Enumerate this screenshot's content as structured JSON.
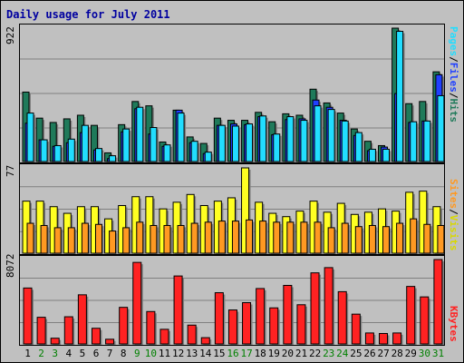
{
  "chart_data": {
    "type": "bar",
    "title": "Daily usage for July 2011",
    "days": [
      "1",
      "2",
      "3",
      "4",
      "5",
      "6",
      "7",
      "8",
      "9",
      "10",
      "11",
      "12",
      "13",
      "14",
      "15",
      "16",
      "17",
      "18",
      "19",
      "20",
      "21",
      "22",
      "23",
      "24",
      "25",
      "26",
      "27",
      "28",
      "29",
      "30",
      "31"
    ],
    "weekend_days": [
      "2",
      "3",
      "9",
      "10",
      "16",
      "17",
      "23",
      "24",
      "30",
      "31"
    ],
    "colors": {
      "pages": "#1f7a5a",
      "files": "#2040ff",
      "hits": "#22ddff",
      "visits": "#ffff22",
      "sites": "#ff9922",
      "kbytes": "#ff2222",
      "weekday_label": "#000000",
      "weekend_label": "#008000"
    },
    "panels": [
      {
        "id": "hits",
        "ymax_label": "922",
        "ylim": [
          0,
          922
        ],
        "legend": [
          "Pages",
          "Files",
          "Hits"
        ],
        "series": [
          {
            "name": "Pages",
            "color": "#1f7a5a",
            "values": [
              480,
              300,
              270,
              295,
              320,
              250,
              60,
              255,
              415,
              385,
              135,
              355,
              170,
              125,
              300,
              285,
              285,
              340,
              275,
              330,
              320,
              500,
              405,
              335,
              225,
              140,
              110,
              922,
              400,
              415,
              620
            ]
          },
          {
            "name": "Files",
            "color": "#2040ff",
            "values": [
              265,
              150,
              105,
              130,
              200,
              80,
              20,
              205,
              365,
              190,
              105,
              355,
              130,
              55,
              250,
              260,
              255,
              310,
              185,
              290,
              295,
              425,
              375,
              285,
              180,
              75,
              100,
              470,
              270,
              280,
              600
            ]
          },
          {
            "name": "Hits",
            "color": "#22ddff",
            "values": [
              335,
              150,
              110,
              155,
              250,
              90,
              40,
              225,
              375,
              235,
              115,
              335,
              140,
              65,
              250,
              245,
              260,
              315,
              190,
              310,
              285,
              385,
              360,
              280,
              200,
              85,
              85,
              900,
              275,
              280,
              455
            ]
          }
        ]
      },
      {
        "id": "visits",
        "ymax_label": "77",
        "ylim": [
          0,
          77
        ],
        "legend": [
          "Sites",
          "Visits"
        ],
        "series": [
          {
            "name": "Sites",
            "color": "#ff9922",
            "values": [
              27,
              25,
              23,
              23,
              27,
              26,
              20,
              23,
              28,
              25,
              25,
              25,
              27,
              28,
              29,
              29,
              30,
              29,
              28,
              28,
              28,
              28,
              23,
              27,
              24,
              25,
              24,
              27,
              31,
              26,
              25
            ]
          },
          {
            "name": "Visits",
            "color": "#ffff22",
            "values": [
              47,
              47,
              42,
              36,
              42,
              42,
              31,
              43,
              51,
              51,
              40,
              46,
              53,
              43,
              47,
              50,
              77,
              46,
              36,
              33,
              38,
              47,
              37,
              45,
              35,
              37,
              40,
              38,
              55,
              56,
              42
            ]
          }
        ]
      },
      {
        "id": "kb",
        "ymax_label": "8072",
        "ylim": [
          0,
          8072
        ],
        "legend": [
          "KBytes"
        ],
        "series": [
          {
            "name": "KBytes",
            "color": "#ff2222",
            "values": [
              5350,
              2550,
              550,
              2600,
              4700,
              1500,
              450,
              3500,
              7800,
              3100,
              1400,
              6500,
              1800,
              600,
              4900,
              3250,
              3950,
              5300,
              3450,
              5600,
              3750,
              6800,
              7300,
              5000,
              2850,
              1050,
              1000,
              1050,
              5500,
              4500,
              8072
            ]
          }
        ]
      }
    ]
  }
}
